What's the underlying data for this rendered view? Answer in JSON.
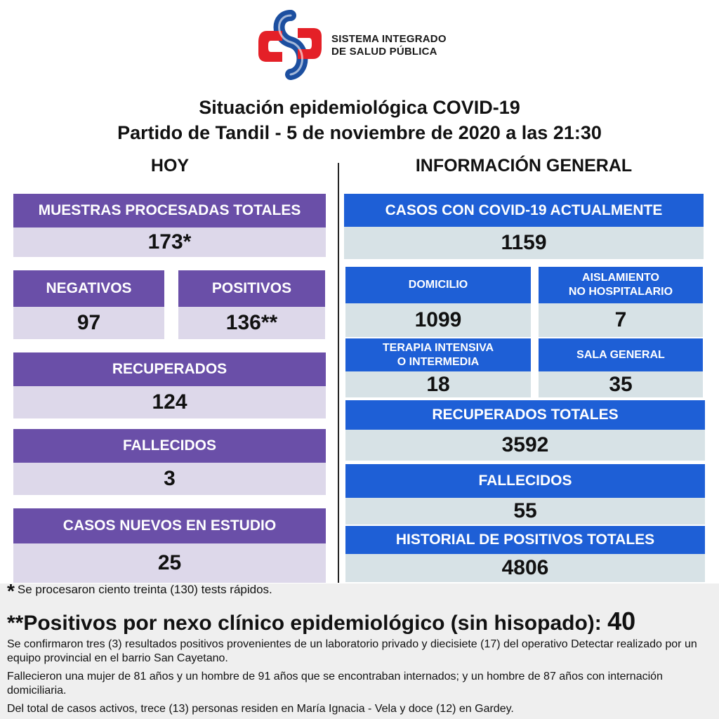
{
  "logo": {
    "line1": "SISTEMA INTEGRADO",
    "line2": "DE SALUD PÚBLICA",
    "colors": {
      "red": "#e42027",
      "blue": "#1c4fa0"
    }
  },
  "title": {
    "line1": "Situación epidemiológica COVID-19",
    "line2": "Partido de Tandil - 5 de noviembre de 2020 a las 21:30"
  },
  "today": {
    "heading": "HOY",
    "muestras": {
      "label": "MUESTRAS PROCESADAS TOTALES",
      "value": "173*"
    },
    "negativos": {
      "label": "NEGATIVOS",
      "value": "97"
    },
    "positivos": {
      "label": "POSITIVOS",
      "value": "136**"
    },
    "recuperados": {
      "label": "RECUPERADOS",
      "value": "124"
    },
    "fallecidos": {
      "label": "FALLECIDOS",
      "value": "3"
    },
    "casos_nuevos": {
      "label": "CASOS NUEVOS EN ESTUDIO",
      "value": "25"
    }
  },
  "general": {
    "heading": "INFORMACIÓN GENERAL",
    "casos_actuales": {
      "label": "CASOS CON COVID-19 ACTUALMENTE",
      "value": "1159"
    },
    "domicilio": {
      "label": "DOMICILIO",
      "value": "1099"
    },
    "aislamiento": {
      "label_line1": "AISLAMIENTO",
      "label_line2": "NO HOSPITALARIO",
      "value": "7"
    },
    "terapia": {
      "label_line1": "TERAPIA INTENSIVA",
      "label_line2": "O INTERMEDIA",
      "value": "18"
    },
    "sala": {
      "label": "SALA GENERAL",
      "value": "35"
    },
    "recuperados_totales": {
      "label": "RECUPERADOS TOTALES",
      "value": "3592"
    },
    "fallecidos": {
      "label": "FALLECIDOS",
      "value": "55"
    },
    "historial": {
      "label": "HISTORIAL DE POSITIVOS TOTALES",
      "value": "4806"
    }
  },
  "notes": {
    "star_mark": "*",
    "star_text": "Se procesaron ciento treinta (130) tests rápidos.",
    "nexo_label": "**Positivos por nexo clínico epidemiológico (sin hisopado):",
    "nexo_value": "40",
    "p1": "Se confirmaron tres (3) resultados positivos provenientes de un laboratorio privado y diecisiete (17) del operativo Detectar realizado por un equipo provincial en el barrio San Cayetano.",
    "p2": "Fallecieron una mujer de 81 años y un  hombre de 91 años que se encontraban internados; y un hombre de 87 años con internación domiciliaria.",
    "p3": "Del total de casos activos, trece (13) personas residen en María Ignacia - Vela y doce (12) en Gardey."
  },
  "colors": {
    "purple_header": "#6a4fa8",
    "purple_value": "#ddd8ea",
    "blue_header": "#1e5fd6",
    "blue_value": "#d7e2e6",
    "notes_bg": "#efefef"
  }
}
